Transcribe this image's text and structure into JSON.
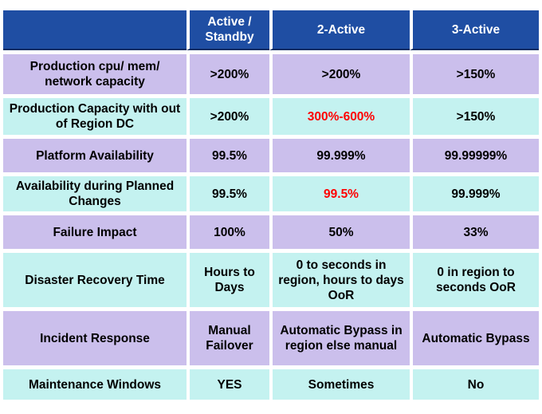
{
  "header": {
    "corner": "",
    "col1": "Active / Standby",
    "col2": "2-Active",
    "col3": "3-Active"
  },
  "rows": [
    {
      "label": "Production cpu/ mem/ network capacity",
      "c1": ">200%",
      "c2": ">200%",
      "c3": ">150%"
    },
    {
      "label": "Production Capacity with out of Region DC",
      "c1": ">200%",
      "c2": "300%-600%",
      "c3": ">150%"
    },
    {
      "label": "Platform Availability",
      "c1": "99.5%",
      "c2": "99.999%",
      "c3": "99.99999%"
    },
    {
      "label": "Availability during Planned Changes",
      "c1": "99.5%",
      "c2": "99.5%",
      "c3": "99.999%"
    },
    {
      "label": "Failure Impact",
      "c1": "100%",
      "c2": "50%",
      "c3": "33%"
    },
    {
      "label": "Disaster Recovery Time",
      "c1": "Hours to Days",
      "c2": "0 to seconds in region, hours to days OoR",
      "c3": "0 in region to seconds OoR"
    },
    {
      "label": "Incident Response",
      "c1": "Manual Failover",
      "c2": "Automatic Bypass in region else manual",
      "c3": "Automatic Bypass"
    },
    {
      "label": "Maintenance Windows",
      "c1": "YES",
      "c2": "Sometimes",
      "c3": "No"
    }
  ],
  "colors": {
    "header_bg": "#1f4ea3",
    "lavender_row": "#cbbfec",
    "cyan_row": "#c4f2f0",
    "highlight_text": "#ff0000"
  }
}
